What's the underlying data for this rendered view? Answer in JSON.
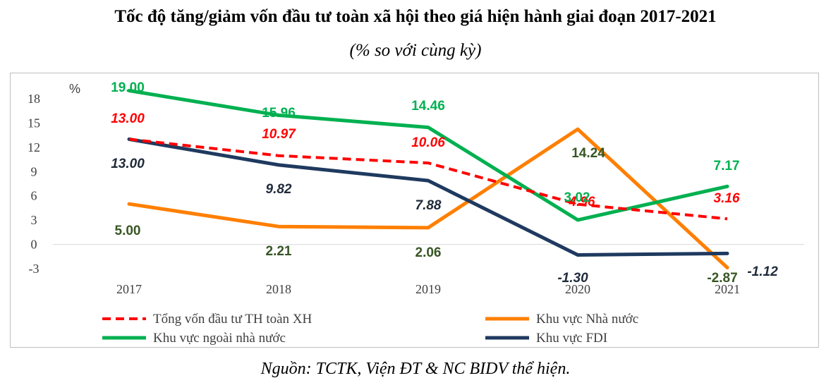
{
  "header": {
    "title": "Tốc độ tăng/giảm vốn đầu tư toàn xã hội theo giá hiện hành giai đoạn 2017-2021",
    "subtitle": "(% so với cùng kỳ)"
  },
  "footer": {
    "source": "Nguồn: TCTK, Viện ĐT & NC BIDV thể hiện."
  },
  "chart_data": {
    "type": "line",
    "ylabel": "%",
    "ylim": [
      -3,
      18
    ],
    "yticks": [
      18,
      15,
      12,
      9,
      6,
      3,
      0,
      -3
    ],
    "categories": [
      "2017",
      "2018",
      "2019",
      "2020",
      "2021"
    ],
    "grid": "horizontal zero line only",
    "legend_position": "bottom",
    "series": [
      {
        "name": "Tổng vốn đầu tư TH toàn XH",
        "values": [
          13.0,
          10.97,
          10.06,
          4.96,
          3.16
        ],
        "labels": [
          "13.00",
          "10.97",
          "10.06",
          "4.96",
          "3.16"
        ],
        "color": "#ff0000",
        "label_color": "#ff0000",
        "dashed": true
      },
      {
        "name": "Khu vực Nhà nước",
        "values": [
          5.0,
          2.21,
          2.06,
          14.24,
          -2.87
        ],
        "labels": [
          "5.00",
          "2.21",
          "2.06",
          "14.24",
          "-2.87"
        ],
        "color": "#ff7f00",
        "label_color": "#375623",
        "dashed": false
      },
      {
        "name": "Khu vực ngoài nhà nước",
        "values": [
          19.0,
          15.96,
          14.46,
          3.02,
          7.17
        ],
        "labels": [
          "19.00",
          "15.96",
          "14.46",
          "3.02",
          "7.17"
        ],
        "color": "#00b050",
        "label_color": "#00b050",
        "dashed": false
      },
      {
        "name": "Khu vực FDI",
        "values": [
          13.0,
          9.82,
          7.88,
          -1.3,
          -1.12
        ],
        "labels": [
          "13.00",
          "9.82",
          "7.88",
          "-1.30",
          "-1.12"
        ],
        "color": "#1f3a5f",
        "label_color": "#1f2a3a",
        "dashed": false
      }
    ]
  }
}
